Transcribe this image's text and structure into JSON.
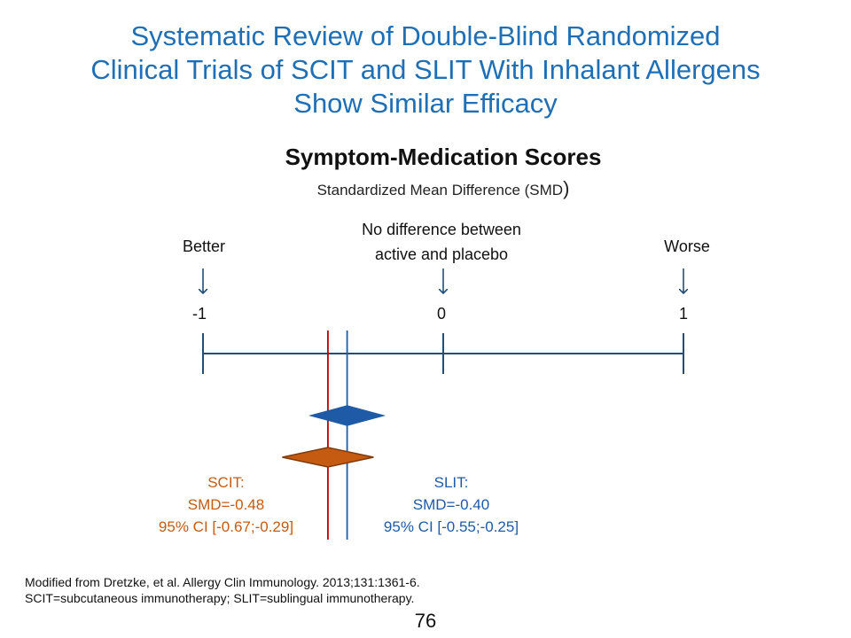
{
  "slide": {
    "title_lines": [
      "Systematic Review of Double-Blind Randomized",
      "Clinical Trials of SCIT and SLIT With Inhalant Allergens",
      "Show Similar Efficacy"
    ],
    "footnote_lines": [
      "Modified from Dretzke, et al. Allergy Clin Immunology. 2013;131:1361-6.",
      "SCIT=subcutaneous immunotherapy; SLIT=sublingual immunotherapy."
    ],
    "page_number": "76"
  },
  "chart_data": {
    "type": "forest",
    "title": "Symptom-Medication Scores",
    "subtitle": "Standardized Mean Difference (SMD",
    "subtitle_paren": ")",
    "axis": {
      "xlim": [
        -1,
        1
      ],
      "ticks": [
        {
          "value": -1,
          "label": "-1"
        },
        {
          "value": 0,
          "label": "0"
        },
        {
          "value": 1,
          "label": "1"
        }
      ]
    },
    "annotations": {
      "better": "Better",
      "worse": "Worse",
      "no_diff_lines": [
        "No difference between",
        "active and placebo"
      ]
    },
    "series": [
      {
        "name": "SCIT",
        "smd": -0.48,
        "ci": [
          -0.67,
          -0.29
        ],
        "color": "#c55a11",
        "line_color": "#c00000",
        "label_lines": [
          "SCIT:",
          "SMD=-0.48",
          "95% CI [-0.67;-0.29]"
        ]
      },
      {
        "name": "SLIT",
        "smd": -0.4,
        "ci": [
          -0.55,
          -0.25
        ],
        "color": "#1f5aa6",
        "line_color": "#1f5aa6",
        "label_lines": [
          "SLIT:",
          "SMD=-0.40",
          "95% CI [-0.55;-0.25]"
        ]
      }
    ],
    "axis_color": "#1f4e79"
  }
}
